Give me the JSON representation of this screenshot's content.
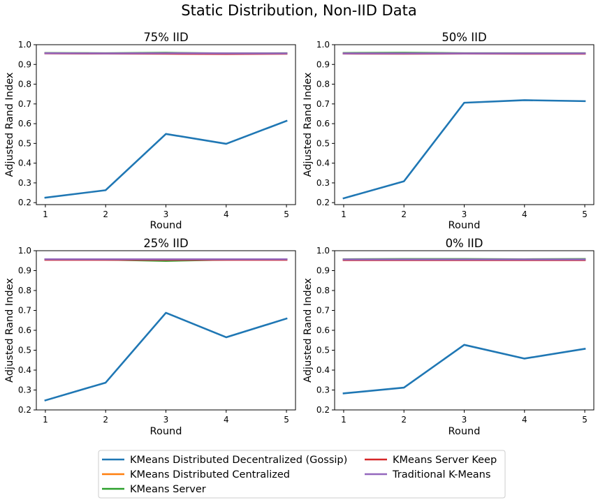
{
  "figure": {
    "title": "Static Distribution, Non-IID Data"
  },
  "colors": {
    "KMeans Distributed Decentralized (Gossip)": "#1f77b4",
    "KMeans Distributed Centralized": "#ff7f0e",
    "KMeans Server": "#2ca02c",
    "KMeans Server Keep": "#d62728",
    "Traditional K-Means": "#9467bd"
  },
  "legend": {
    "entries": [
      "KMeans Distributed Decentralized (Gossip)",
      "KMeans Distributed Centralized",
      "KMeans Server",
      "KMeans Server Keep",
      "Traditional K-Means"
    ],
    "placement": "bottom-center",
    "columns": 2
  },
  "chart_data": [
    {
      "type": "line",
      "title": "75% IID",
      "xlabel": "Round",
      "ylabel": "Adjusted Rand Index",
      "x": [
        1,
        2,
        3,
        4,
        5
      ],
      "xlim": [
        0.85,
        5.15
      ],
      "ylim": [
        0.19,
        1.0
      ],
      "yticks": [
        0.2,
        0.3,
        0.4,
        0.5,
        0.6,
        0.7,
        0.8,
        0.9,
        1.0
      ],
      "ytick_labels": [
        "0.2",
        "0.3",
        "0.4",
        "0.5",
        "0.6",
        "0.7",
        "0.8",
        "0.9",
        "1.0"
      ],
      "xticks": [
        1,
        2,
        3,
        4,
        5
      ],
      "xtick_labels": [
        "1",
        "2",
        "3",
        "4",
        "5"
      ],
      "grid": false,
      "series": [
        {
          "name": "KMeans Distributed Decentralized (Gossip)",
          "values": [
            0.225,
            0.263,
            0.548,
            0.498,
            0.614
          ]
        },
        {
          "name": "KMeans Distributed Centralized",
          "values": [
            0.957,
            0.956,
            0.957,
            0.955,
            0.956
          ]
        },
        {
          "name": "KMeans Server",
          "values": [
            0.958,
            0.957,
            0.959,
            0.956,
            0.957
          ]
        },
        {
          "name": "KMeans Server Keep",
          "values": [
            0.956,
            0.955,
            0.954,
            0.953,
            0.954
          ]
        },
        {
          "name": "Traditional K-Means",
          "values": [
            0.957,
            0.956,
            0.957,
            0.956,
            0.956
          ]
        }
      ]
    },
    {
      "type": "line",
      "title": "50% IID",
      "xlabel": "Round",
      "ylabel": "Adjusted Rand Index",
      "x": [
        1,
        2,
        3,
        4,
        5
      ],
      "xlim": [
        0.85,
        5.15
      ],
      "ylim": [
        0.19,
        1.0
      ],
      "yticks": [
        0.2,
        0.3,
        0.4,
        0.5,
        0.6,
        0.7,
        0.8,
        0.9,
        1.0
      ],
      "ytick_labels": [
        "0.2",
        "0.3",
        "0.4",
        "0.5",
        "0.6",
        "0.7",
        "0.8",
        "0.9",
        "1.0"
      ],
      "xticks": [
        1,
        2,
        3,
        4,
        5
      ],
      "xtick_labels": [
        "1",
        "2",
        "3",
        "4",
        "5"
      ],
      "grid": false,
      "series": [
        {
          "name": "KMeans Distributed Decentralized (Gossip)",
          "values": [
            0.222,
            0.308,
            0.706,
            0.719,
            0.714
          ]
        },
        {
          "name": "KMeans Distributed Centralized",
          "values": [
            0.956,
            0.957,
            0.956,
            0.956,
            0.955
          ]
        },
        {
          "name": "KMeans Server",
          "values": [
            0.958,
            0.959,
            0.957,
            0.957,
            0.957
          ]
        },
        {
          "name": "KMeans Server Keep",
          "values": [
            0.955,
            0.954,
            0.955,
            0.954,
            0.954
          ]
        },
        {
          "name": "Traditional K-Means",
          "values": [
            0.956,
            0.956,
            0.956,
            0.956,
            0.956
          ]
        }
      ]
    },
    {
      "type": "line",
      "title": "25% IID",
      "xlabel": "Round",
      "ylabel": "Adjusted Rand Index",
      "x": [
        1,
        2,
        3,
        4,
        5
      ],
      "xlim": [
        0.85,
        5.15
      ],
      "ylim": [
        0.2,
        1.0
      ],
      "yticks": [
        0.2,
        0.3,
        0.4,
        0.5,
        0.6,
        0.7,
        0.8,
        0.9,
        1.0
      ],
      "ytick_labels": [
        "0.2",
        "0.3",
        "0.4",
        "0.5",
        "0.6",
        "0.7",
        "0.8",
        "0.9",
        "1.0"
      ],
      "xticks": [
        1,
        2,
        3,
        4,
        5
      ],
      "xtick_labels": [
        "1",
        "2",
        "3",
        "4",
        "5"
      ],
      "grid": false,
      "series": [
        {
          "name": "KMeans Distributed Decentralized (Gossip)",
          "values": [
            0.248,
            0.337,
            0.688,
            0.565,
            0.659
          ]
        },
        {
          "name": "KMeans Distributed Centralized",
          "values": [
            0.956,
            0.956,
            0.955,
            0.956,
            0.956
          ]
        },
        {
          "name": "KMeans Server",
          "values": [
            0.957,
            0.955,
            0.949,
            0.955,
            0.957
          ]
        },
        {
          "name": "KMeans Server Keep",
          "values": [
            0.954,
            0.954,
            0.954,
            0.954,
            0.954
          ]
        },
        {
          "name": "Traditional K-Means",
          "values": [
            0.957,
            0.957,
            0.957,
            0.957,
            0.957
          ]
        }
      ]
    },
    {
      "type": "line",
      "title": "0% IID",
      "xlabel": "Round",
      "ylabel": "Adjusted Rand Index",
      "x": [
        1,
        2,
        3,
        4,
        5
      ],
      "xlim": [
        0.85,
        5.15
      ],
      "ylim": [
        0.2,
        1.0
      ],
      "yticks": [
        0.2,
        0.3,
        0.4,
        0.5,
        0.6,
        0.7,
        0.8,
        0.9,
        1.0
      ],
      "ytick_labels": [
        "0.2",
        "0.3",
        "0.4",
        "0.5",
        "0.6",
        "0.7",
        "0.8",
        "0.9",
        "1.0"
      ],
      "xticks": [
        1,
        2,
        3,
        4,
        5
      ],
      "xtick_labels": [
        "1",
        "2",
        "3",
        "4",
        "5"
      ],
      "grid": false,
      "series": [
        {
          "name": "KMeans Distributed Decentralized (Gossip)",
          "values": [
            0.283,
            0.312,
            0.527,
            0.458,
            0.507
          ]
        },
        {
          "name": "KMeans Distributed Centralized",
          "values": [
            0.955,
            0.955,
            0.955,
            0.955,
            0.955
          ]
        },
        {
          "name": "KMeans Server",
          "values": [
            0.957,
            0.958,
            0.958,
            0.957,
            0.958
          ]
        },
        {
          "name": "KMeans Server Keep",
          "values": [
            0.953,
            0.953,
            0.953,
            0.953,
            0.953
          ]
        },
        {
          "name": "Traditional K-Means",
          "values": [
            0.956,
            0.956,
            0.956,
            0.956,
            0.956
          ]
        }
      ]
    }
  ]
}
